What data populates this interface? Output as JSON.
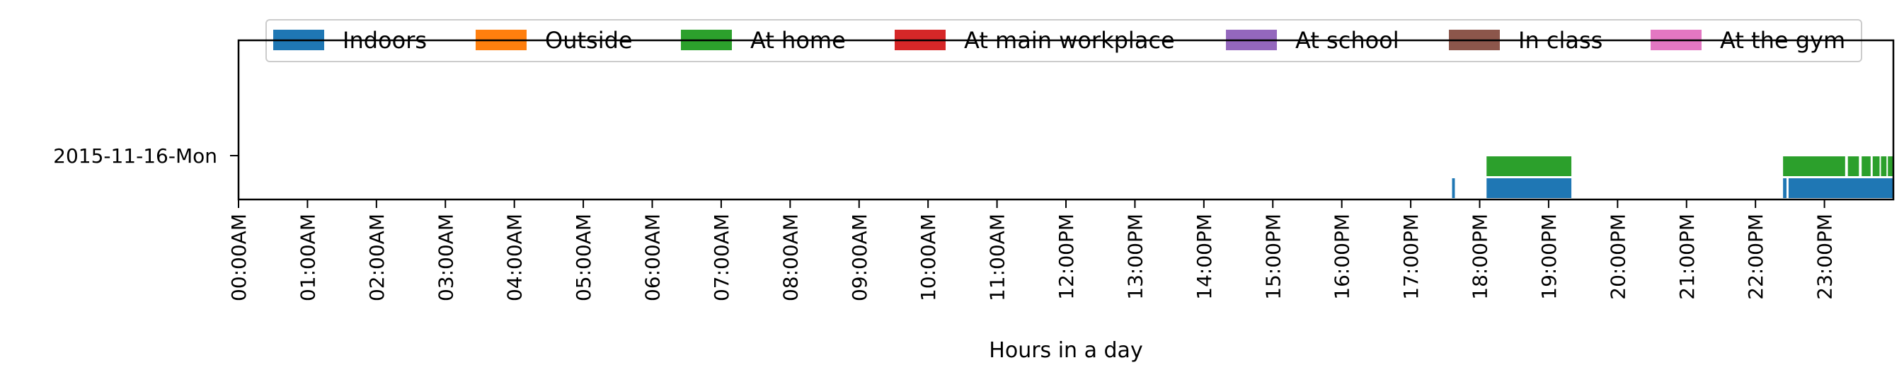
{
  "chart_data": {
    "type": "timeline",
    "xlabel": "Hours in a day",
    "xlim": [
      0,
      24
    ],
    "x_tick_labels": [
      "00:00AM",
      "01:00AM",
      "02:00AM",
      "03:00AM",
      "04:00AM",
      "05:00AM",
      "06:00AM",
      "07:00AM",
      "08:00AM",
      "09:00AM",
      "10:00AM",
      "11:00AM",
      "12:00PM",
      "13:00PM",
      "14:00PM",
      "15:00PM",
      "16:00PM",
      "17:00PM",
      "18:00PM",
      "19:00PM",
      "20:00PM",
      "21:00PM",
      "22:00PM",
      "23:00PM"
    ],
    "y_tick_labels": [
      "2015-11-16-Mon"
    ],
    "legend": {
      "placement": "top",
      "ncol": 7
    },
    "series": [
      {
        "name": "Indoors",
        "color": "#1f77b4",
        "level": 0,
        "intervals": [
          [
            17.6,
            17.64
          ],
          [
            18.1,
            19.33
          ],
          [
            22.4,
            22.45
          ],
          [
            22.48,
            24.0
          ]
        ]
      },
      {
        "name": "Outside",
        "color": "#ff7f0e",
        "level": 1,
        "intervals": []
      },
      {
        "name": "At home",
        "color": "#2ca02c",
        "level": 1,
        "intervals": [
          [
            18.1,
            19.33
          ],
          [
            22.4,
            23.3
          ],
          [
            23.34,
            23.5
          ],
          [
            23.54,
            23.67
          ],
          [
            23.7,
            23.8
          ],
          [
            23.82,
            23.9
          ],
          [
            23.92,
            24.0
          ]
        ]
      },
      {
        "name": "At main workplace",
        "color": "#d62728",
        "level": 2,
        "intervals": []
      },
      {
        "name": "At school",
        "color": "#9467bd",
        "level": 2,
        "intervals": []
      },
      {
        "name": "In class",
        "color": "#8c564b",
        "level": 3,
        "intervals": []
      },
      {
        "name": "At the gym",
        "color": "#e377c2",
        "level": 3,
        "intervals": []
      }
    ]
  }
}
